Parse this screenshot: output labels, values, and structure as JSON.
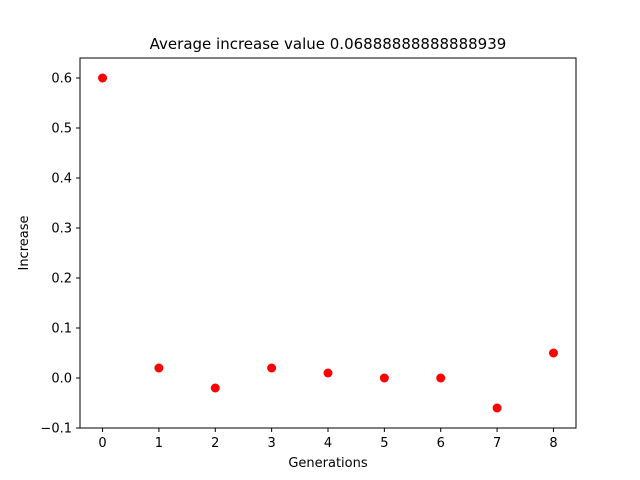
{
  "chart_data": {
    "type": "scatter",
    "title": "Average increase value 0.06888888888888939",
    "xlabel": "Generations",
    "ylabel": "Increase",
    "x": [
      0,
      1,
      2,
      3,
      4,
      5,
      6,
      7,
      8
    ],
    "y": [
      0.6,
      0.02,
      -0.02,
      0.02,
      0.01,
      0.0,
      0.0,
      -0.06,
      0.05
    ],
    "xlim": [
      -0.4,
      8.4
    ],
    "ylim": [
      -0.1,
      0.64
    ],
    "xticks": [
      "0",
      "1",
      "2",
      "3",
      "4",
      "5",
      "6",
      "7",
      "8"
    ],
    "yticks": [
      "−0.1",
      "0.0",
      "0.1",
      "0.2",
      "0.3",
      "0.4",
      "0.5",
      "0.6"
    ],
    "ytick_values": [
      -0.1,
      0.0,
      0.1,
      0.2,
      0.3,
      0.4,
      0.5,
      0.6
    ],
    "grid": false,
    "marker_color": "#ff0000"
  }
}
